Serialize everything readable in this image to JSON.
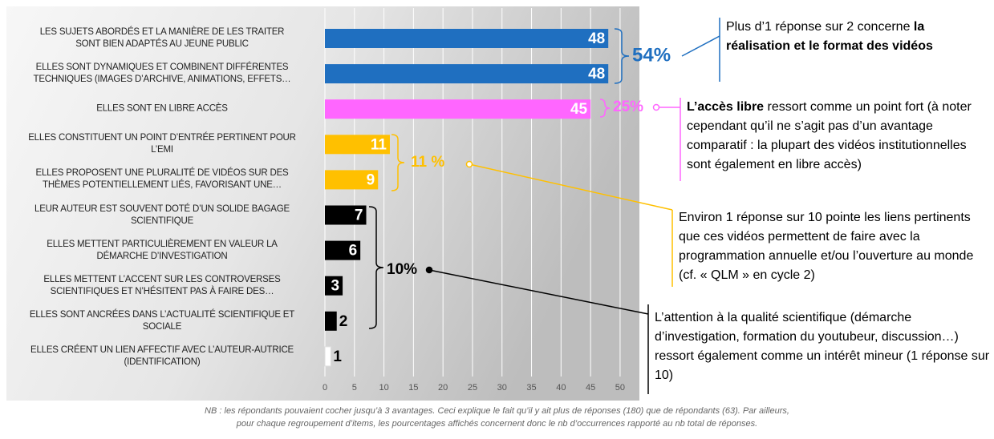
{
  "chart_data": {
    "type": "bar",
    "orientation": "horizontal",
    "categories": [
      "LES SUJETS ABORDÉS ET LA MANIÈRE DE LES TRAITER\nSONT BIEN ADAPTÉS AU JEUNE PUBLIC",
      "ELLES SONT DYNAMIQUES ET COMBINENT DIFFÉRENTES\nTECHNIQUES (IMAGES D’ARCHIVE, ANIMATIONS, EFFETS…",
      "ELLES SONT EN LIBRE ACCÈS",
      "ELLES CONSTITUENT UN POINT D’ENTRÉE PERTINENT POUR\nL’EMI",
      "ELLES PROPOSENT UNE PLURALITÉ DE VIDÉOS SUR DES\nTHÈMES POTENTIELLEMENT LIÉS, FAVORISANT UNE…",
      "LEUR AUTEUR EST SOUVENT DOTÉ D’UN SOLIDE BAGAGE\nSCIENTIFIQUE",
      "ELLES METTENT PARTICULIÈREMENT EN VALEUR LA\nDÉMARCHE D’INVESTIGATION",
      "ELLES METTENT L’ACCENT SUR LES CONTROVERSES\nSCIENTIFIQUES ET N’HÉSITENT PAS À FAIRE DES…",
      "ELLES SONT ANCRÉES DANS L’ACTUALITÉ SCIENTIFIQUE ET\nSOCIALE",
      "ELLES CRÉENT UN LIEN AFFECTIF AVEC L’AUTEUR-AUTRICE\n(IDENTIFICATION)"
    ],
    "values": [
      48,
      48,
      45,
      11,
      9,
      7,
      6,
      3,
      2,
      1
    ],
    "colors": [
      "#1f6fc0",
      "#1f6fc0",
      "#ff66ff",
      "#ffc000",
      "#ffc000",
      "#000000",
      "#000000",
      "#000000",
      "#000000",
      "#ffffff"
    ],
    "xlim": [
      0,
      53
    ],
    "xticks": [
      0,
      5,
      10,
      15,
      20,
      25,
      30,
      35,
      40,
      45,
      50
    ],
    "grid": true,
    "annotations": [
      {
        "text": "54%",
        "color": "#1f6fc0"
      },
      {
        "text": "25%",
        "color": "#ff66ff"
      },
      {
        "text": "11 %",
        "color": "#ffc000"
      },
      {
        "text": "10%",
        "color": "#000000"
      }
    ],
    "callouts": [
      {
        "parts": [
          {
            "text": "Plus d’1 réponse sur 2 concerne ",
            "bold": false
          },
          {
            "text": "la réalisation et le format des vidéos",
            "bold": true
          }
        ]
      },
      {
        "parts": [
          {
            "text": "L’accès libre",
            "bold": true
          },
          {
            "text": " ressort comme un point fort (à noter cependant qu’il ne s’agit pas d’un avantage comparatif : la plupart des vidéos institutionnelles sont également en libre accès)",
            "bold": false
          }
        ]
      },
      {
        "parts": [
          {
            "text": "Environ 1 réponse sur 10 pointe les liens pertinents que ces vidéos permettent de faire avec la programmation annuelle et/ou l’ouverture au monde (cf. « QLM » en cycle 2)",
            "bold": false
          }
        ]
      },
      {
        "parts": [
          {
            "text": "L’attention à la qualité scientifique (démarche d’investigation, formation du youtubeur, discussion…) ressort également comme un intérêt mineur (1 réponse sur 10)",
            "bold": false
          }
        ]
      }
    ],
    "note": "NB : les répondants pouvaient cocher jusqu’à 3 avantages. Ceci explique le fait qu’il y ait plus de réponses (180) que de répondants (63). Par ailleurs,\npour chaque regroupement d’items, les pourcentages affichés concernent donc le nb d’occurrences rapporté au nb total de réponses."
  }
}
